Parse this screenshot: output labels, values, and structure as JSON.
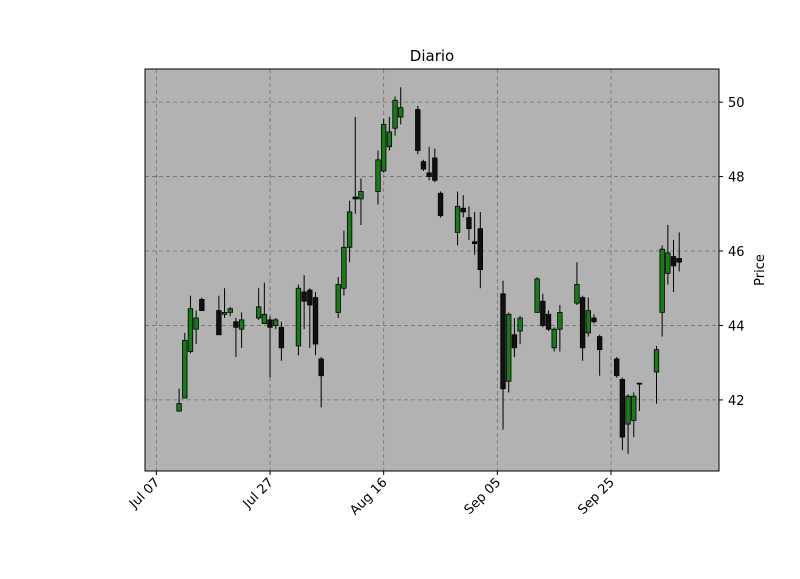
{
  "chart_data": {
    "type": "candlestick",
    "title": "Diario",
    "y_label": "Price",
    "y_axis_side": "right",
    "grid": true,
    "background": "#b2b2b2",
    "up_color": "#1a7a1a",
    "down_color": "#111111",
    "xlim": [
      "Jul 05",
      "Oct 14"
    ],
    "xticks": [
      "Jul 07",
      "Jul 27",
      "Aug 16",
      "Sep 05",
      "Sep 25"
    ],
    "ylim": [
      40.09,
      50.89
    ],
    "yticks": [
      42,
      44,
      46,
      48,
      50
    ],
    "x": [
      "Jul 11",
      "Jul 12",
      "Jul 13",
      "Jul 14",
      "Jul 15",
      "Jul 18",
      "Jul 19",
      "Jul 20",
      "Jul 21",
      "Jul 22",
      "Jul 25",
      "Jul 26",
      "Jul 27",
      "Jul 28",
      "Jul 29",
      "Aug 01",
      "Aug 02",
      "Aug 03",
      "Aug 04",
      "Aug 05",
      "Aug 08",
      "Aug 09",
      "Aug 10",
      "Aug 11",
      "Aug 12",
      "Aug 15",
      "Aug 16",
      "Aug 17",
      "Aug 18",
      "Aug 19",
      "Aug 22",
      "Aug 23",
      "Aug 24",
      "Aug 25",
      "Aug 26",
      "Aug 29",
      "Aug 30",
      "Aug 31",
      "Sep 01",
      "Sep 02",
      "Sep 06",
      "Sep 07",
      "Sep 08",
      "Sep 09",
      "Sep 12",
      "Sep 13",
      "Sep 14",
      "Sep 15",
      "Sep 16",
      "Sep 19",
      "Sep 20",
      "Sep 21",
      "Sep 22",
      "Sep 23",
      "Sep 26",
      "Sep 27",
      "Sep 28",
      "Sep 29",
      "Sep 30",
      "Oct 03",
      "Oct 04",
      "Oct 05",
      "Oct 06",
      "Oct 07"
    ],
    "open": [
      41.7,
      42.05,
      43.3,
      43.9,
      44.7,
      44.4,
      44.3,
      44.35,
      44.1,
      43.9,
      44.2,
      44.05,
      44.15,
      44.0,
      43.95,
      43.45,
      44.9,
      44.95,
      44.75,
      43.1,
      44.35,
      45.0,
      46.1,
      47.45,
      47.4,
      47.6,
      48.15,
      48.8,
      49.3,
      49.6,
      49.8,
      48.4,
      48.1,
      48.5,
      47.55,
      46.5,
      47.15,
      46.9,
      46.25,
      46.6,
      44.85,
      42.5,
      43.75,
      43.85,
      44.35,
      44.65,
      44.3,
      43.4,
      43.9,
      44.6,
      44.75,
      43.8,
      44.2,
      43.7,
      43.1,
      42.55,
      41.35,
      41.45,
      42.45,
      42.75,
      44.35,
      45.4,
      45.85,
      45.8
    ],
    "high": [
      42.3,
      43.8,
      44.8,
      44.4,
      44.75,
      44.8,
      45.0,
      44.5,
      44.2,
      44.35,
      45.0,
      45.15,
      44.25,
      44.2,
      44.1,
      45.1,
      45.35,
      45.0,
      44.9,
      43.15,
      45.3,
      46.55,
      47.35,
      49.6,
      47.95,
      48.7,
      49.55,
      49.6,
      50.15,
      50.4,
      49.9,
      48.45,
      48.8,
      48.75,
      47.6,
      47.6,
      47.5,
      47.2,
      47.05,
      47.05,
      45.2,
      44.35,
      44.2,
      44.25,
      45.3,
      44.85,
      44.4,
      43.95,
      44.55,
      45.7,
      44.8,
      44.75,
      44.3,
      43.75,
      43.15,
      42.6,
      42.15,
      42.2,
      42.45,
      43.45,
      46.15,
      46.7,
      46.3,
      46.5
    ],
    "low": [
      41.68,
      42.05,
      43.25,
      43.5,
      44.4,
      43.75,
      44.2,
      44.25,
      43.15,
      43.4,
      44.15,
      44.05,
      42.6,
      43.9,
      43.05,
      43.2,
      43.9,
      43.4,
      43.2,
      41.8,
      44.2,
      44.8,
      45.7,
      47.0,
      46.7,
      47.25,
      48.1,
      48.7,
      49.1,
      49.4,
      48.6,
      48.15,
      47.9,
      47.85,
      46.9,
      46.15,
      46.9,
      46.3,
      45.9,
      45.0,
      41.2,
      42.2,
      43.15,
      43.5,
      44.35,
      43.95,
      43.85,
      43.3,
      43.3,
      44.55,
      43.05,
      43.7,
      44.05,
      42.65,
      42.6,
      40.65,
      40.55,
      41.0,
      41.7,
      41.9,
      43.7,
      45.1,
      44.9,
      45.45
    ],
    "close": [
      41.9,
      43.6,
      44.45,
      44.2,
      44.4,
      43.75,
      44.35,
      44.45,
      43.95,
      44.15,
      44.5,
      44.3,
      43.95,
      44.15,
      43.4,
      45.0,
      44.65,
      44.55,
      43.5,
      42.65,
      45.1,
      46.1,
      47.05,
      47.4,
      47.6,
      48.45,
      49.4,
      49.2,
      50.05,
      49.85,
      48.7,
      48.2,
      48.0,
      47.9,
      46.95,
      47.2,
      47.05,
      46.6,
      46.2,
      45.5,
      42.3,
      44.3,
      43.4,
      44.2,
      45.25,
      44.0,
      43.9,
      43.9,
      44.35,
      45.1,
      43.4,
      44.4,
      44.1,
      43.35,
      42.65,
      41.0,
      42.1,
      42.1,
      42.43,
      43.35,
      46.05,
      45.95,
      45.6,
      45.7
    ]
  }
}
